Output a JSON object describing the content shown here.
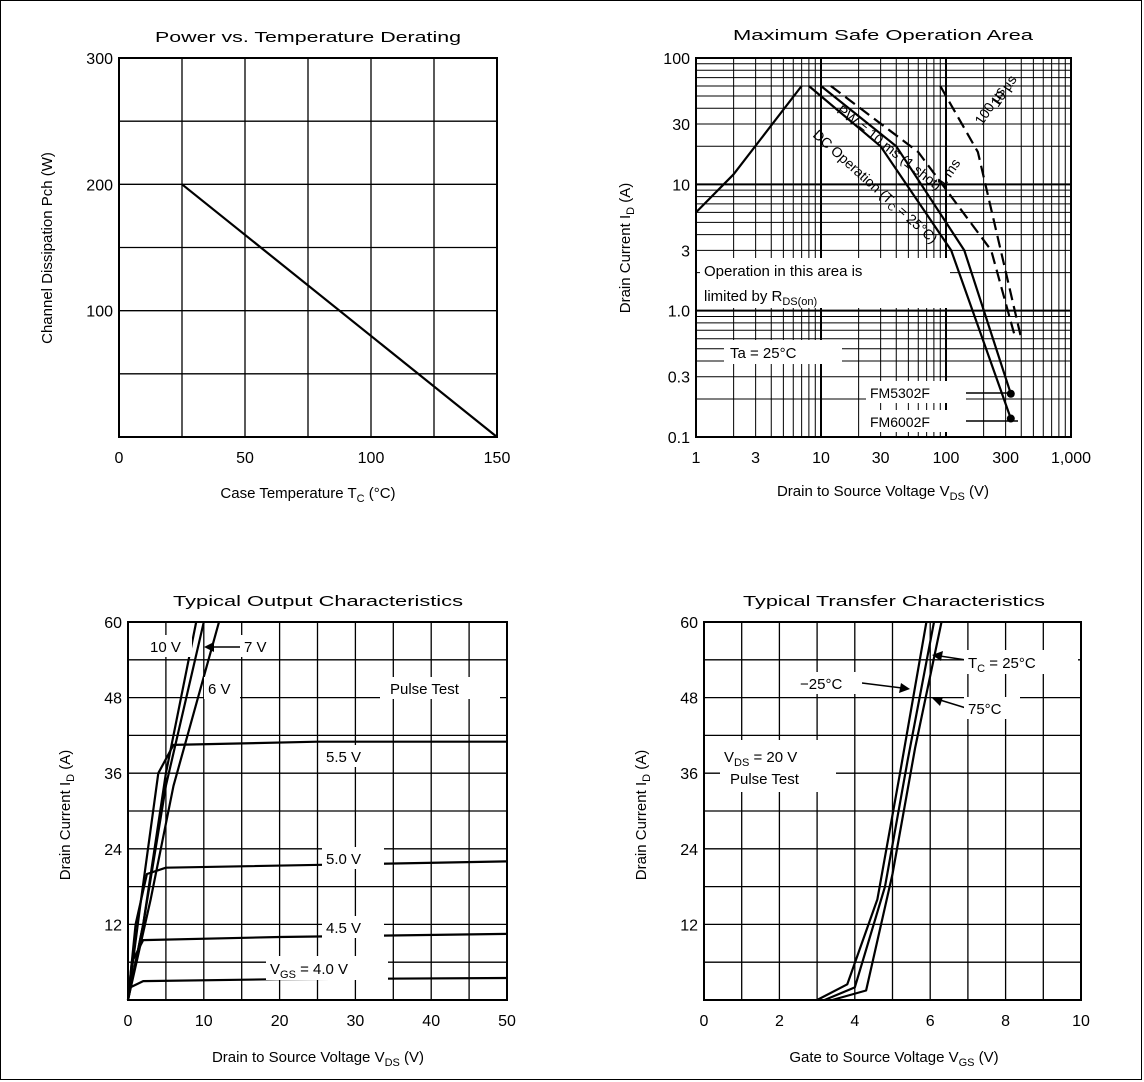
{
  "charts": [
    {
      "type": "line",
      "title": "Power vs. Temperature Derating",
      "xlabel": "Case Temperature  T",
      "xlabel_sub": "C",
      "xlabel_unit": "  (°C)",
      "ylabel": "Channel Dissipation  Pch  (W)",
      "x_ticks": [
        "0",
        "50",
        "100",
        "150"
      ],
      "y_ticks": [
        "300",
        "200",
        "100"
      ],
      "xlim": [
        0,
        150
      ],
      "ylim": [
        0,
        300
      ],
      "grid": true,
      "series": [
        {
          "points": [
            [
              25,
              200
            ],
            [
              150,
              0
            ]
          ]
        }
      ]
    },
    {
      "type": "line",
      "title": "Maximum Safe Operation Area",
      "xlabel": "Drain to Source Voltage  V",
      "xlabel_sub": "DS",
      "xlabel_unit": "  (V)",
      "ylabel": "Drain Current  I",
      "ylabel_sub": "D",
      "ylabel_unit": "  (A)",
      "x_ticks": [
        "1",
        "3",
        "10",
        "30",
        "100",
        "300",
        "1,000"
      ],
      "y_ticks": [
        "100",
        "30",
        "10",
        "3",
        "1.0",
        "0.3",
        "0.1"
      ],
      "xlim": [
        1,
        1000
      ],
      "ylim": [
        0.1,
        100
      ],
      "x_scale": "log",
      "y_scale": "log",
      "grid": true,
      "annotations": {
        "pw_10us": "10 µs",
        "pw_100us": "100 µs",
        "pw_1ms": "1 ms",
        "pw_10ms": "PW = 10 ms (1 shot)",
        "dc": "DC Operation (T",
        "dc_sub": "C",
        "dc_end": " = 25°C)",
        "limit_line1": "Operation in this area is",
        "limit_line2": "limited by R",
        "limit_sub": "DS(on)",
        "ta": "Ta = 25°C",
        "part_a": "FM5302F",
        "part_b": "FM6002F"
      },
      "series": [
        {
          "points": [
            [
              1,
              6
            ],
            [
              2,
              12
            ],
            [
              7,
              60
            ]
          ]
        },
        {
          "points": [
            [
              12,
              60
            ],
            [
              60,
              18
            ],
            [
              230,
              3
            ],
            [
              360,
              0.6
            ]
          ]
        },
        {
          "points": [
            [
              10,
              60
            ],
            [
              40,
              20
            ],
            [
              140,
              3
            ],
            [
              330,
              0.22
            ]
          ]
        },
        {
          "points": [
            [
              8,
              60
            ],
            [
              30,
              20
            ],
            [
              110,
              3
            ],
            [
              330,
              0.14
            ]
          ]
        },
        {
          "points": [
            [
              90,
              60
            ],
            [
              180,
              18
            ],
            [
              400,
              0.6
            ]
          ]
        }
      ]
    },
    {
      "type": "line",
      "title": "Typical Output Characteristics",
      "xlabel": "Drain to Source Voltage  V",
      "xlabel_sub": "DS",
      "xlabel_unit": "  (V)",
      "ylabel": "Drain Current  I",
      "ylabel_sub": "D",
      "ylabel_unit": "  (A)",
      "x_ticks": [
        "0",
        "10",
        "20",
        "30",
        "40",
        "50"
      ],
      "y_ticks": [
        "60",
        "48",
        "36",
        "24",
        "12"
      ],
      "xlim": [
        0,
        50
      ],
      "ylim": [
        0,
        60
      ],
      "grid": true,
      "annotations": {
        "v10": "10 V",
        "v7": "7 V",
        "v6": "6 V",
        "pulse": "Pulse Test",
        "v55": "5.5 V",
        "v50": "5.0 V",
        "v45": "4.5 V",
        "vgs": "V",
        "vgs_sub": "GS",
        "vgs_end": " = 4.0 V"
      },
      "series": [
        {
          "name": "10 V",
          "points": [
            [
              0,
              0
            ],
            [
              2,
              12
            ],
            [
              5,
              36
            ],
            [
              9,
              60
            ]
          ]
        },
        {
          "name": "7 V",
          "points": [
            [
              0,
              0
            ],
            [
              2,
              12
            ],
            [
              5,
              34
            ],
            [
              10,
              60
            ]
          ]
        },
        {
          "name": "6 V",
          "points": [
            [
              0,
              0
            ],
            [
              3,
              16
            ],
            [
              6,
              34
            ],
            [
              12,
              60
            ]
          ]
        },
        {
          "name": "5.5 V",
          "points": [
            [
              0,
              0
            ],
            [
              1.5,
              14
            ],
            [
              4,
              36
            ],
            [
              6,
              40.5
            ],
            [
              25,
              41
            ],
            [
              50,
              41
            ]
          ]
        },
        {
          "name": "5.0 V",
          "points": [
            [
              0,
              0
            ],
            [
              1,
              12
            ],
            [
              2.5,
              20
            ],
            [
              5,
              21
            ],
            [
              50,
              22
            ]
          ]
        },
        {
          "name": "4.5 V",
          "points": [
            [
              0,
              0
            ],
            [
              0.5,
              6
            ],
            [
              2,
              9.5
            ],
            [
              20,
              10
            ],
            [
              50,
              10.5
            ]
          ]
        },
        {
          "name": "4.0 V",
          "points": [
            [
              0,
              0
            ],
            [
              0.3,
              2
            ],
            [
              2,
              3
            ],
            [
              20,
              3.3
            ],
            [
              50,
              3.5
            ]
          ]
        }
      ]
    },
    {
      "type": "line",
      "title": "Typical Transfer Characteristics",
      "xlabel": "Gate to Source Voltage  V",
      "xlabel_sub": "GS",
      "xlabel_unit": "  (V)",
      "ylabel": "Drain Current  I",
      "ylabel_sub": "D",
      "ylabel_unit": "  (A)",
      "x_ticks": [
        "0",
        "2",
        "4",
        "6",
        "8",
        "10"
      ],
      "y_ticks": [
        "60",
        "48",
        "36",
        "24",
        "12"
      ],
      "xlim": [
        0,
        10
      ],
      "ylim": [
        0,
        60
      ],
      "grid": true,
      "annotations": {
        "tc": "T",
        "tc_sub": "C",
        "tc_end": " = 25°C",
        "t_m25": "−25°C",
        "t_75": "75°C",
        "vds": "V",
        "vds_sub": "DS",
        "vds_end": " = 20 V",
        "pulse": "Pulse Test"
      },
      "series": [
        {
          "name": "−25°C",
          "points": [
            [
              3.0,
              0
            ],
            [
              3.8,
              2.5
            ],
            [
              4.6,
              16
            ],
            [
              5.2,
              36
            ],
            [
              5.9,
              60
            ]
          ]
        },
        {
          "name": "25°C",
          "points": [
            [
              3.2,
              0
            ],
            [
              4.0,
              2.0
            ],
            [
              4.8,
              18
            ],
            [
              5.4,
              38
            ],
            [
              6.1,
              60
            ]
          ]
        },
        {
          "name": "75°C",
          "points": [
            [
              3.4,
              0
            ],
            [
              4.3,
              1.5
            ],
            [
              5.0,
              20
            ],
            [
              5.6,
              40
            ],
            [
              6.3,
              60
            ]
          ]
        }
      ]
    }
  ]
}
